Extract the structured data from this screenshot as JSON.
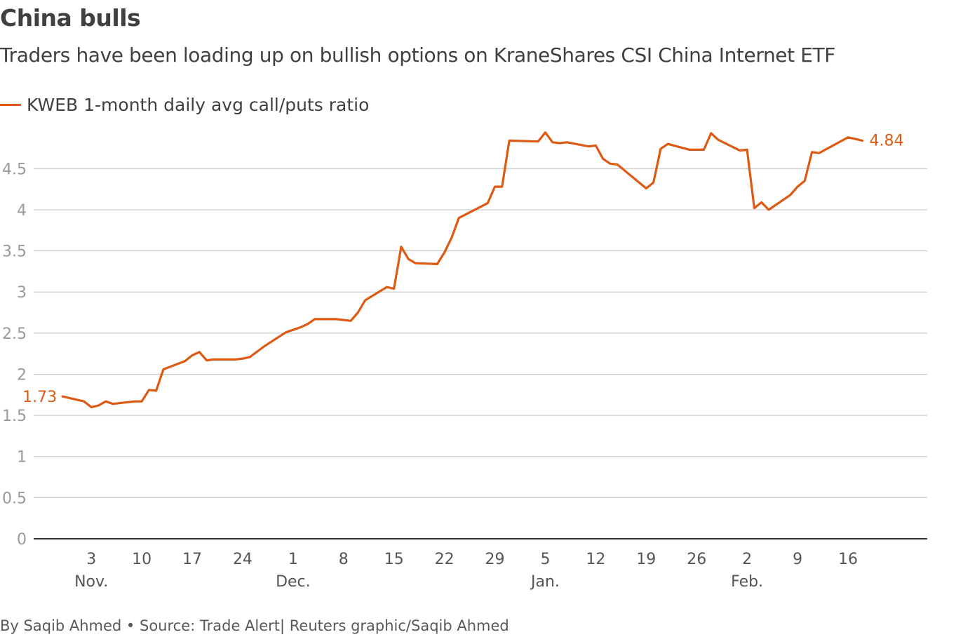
{
  "chart_data": {
    "type": "line",
    "title": "China bulls",
    "subtitle": "Traders have been loading up on bullish options on KraneShares CSI China Internet ETF",
    "series": [
      {
        "name": "KWEB 1-month daily avg call/puts ratio",
        "color": "#dc5a14",
        "start_label": "1.73",
        "end_label": "4.84",
        "x": [
          "2020-10-30",
          "2020-11-02",
          "2020-11-03",
          "2020-11-04",
          "2020-11-05",
          "2020-11-06",
          "2020-11-09",
          "2020-11-10",
          "2020-11-11",
          "2020-11-12",
          "2020-11-13",
          "2020-11-16",
          "2020-11-17",
          "2020-11-18",
          "2020-11-19",
          "2020-11-20",
          "2020-11-23",
          "2020-11-24",
          "2020-11-25",
          "2020-11-27",
          "2020-11-30",
          "2020-12-01",
          "2020-12-02",
          "2020-12-03",
          "2020-12-04",
          "2020-12-07",
          "2020-12-08",
          "2020-12-09",
          "2020-12-10",
          "2020-12-11",
          "2020-12-14",
          "2020-12-15",
          "2020-12-16",
          "2020-12-17",
          "2020-12-18",
          "2020-12-21",
          "2020-12-22",
          "2020-12-23",
          "2020-12-24",
          "2020-12-28",
          "2020-12-29",
          "2020-12-30",
          "2020-12-31",
          "2021-01-04",
          "2021-01-05",
          "2021-01-06",
          "2021-01-07",
          "2021-01-08",
          "2021-01-11",
          "2021-01-12",
          "2021-01-13",
          "2021-01-14",
          "2021-01-15",
          "2021-01-19",
          "2021-01-20",
          "2021-01-21",
          "2021-01-22",
          "2021-01-25",
          "2021-01-26",
          "2021-01-27",
          "2021-01-28",
          "2021-01-29",
          "2021-02-01",
          "2021-02-02",
          "2021-02-03",
          "2021-02-04",
          "2021-02-05",
          "2021-02-08",
          "2021-02-09",
          "2021-02-10",
          "2021-02-11",
          "2021-02-12",
          "2021-02-16",
          "2021-02-17",
          "2021-02-18"
        ],
        "values": [
          1.73,
          1.67,
          1.6,
          1.62,
          1.67,
          1.64,
          1.67,
          1.67,
          1.81,
          1.8,
          2.06,
          2.16,
          2.23,
          2.27,
          2.17,
          2.18,
          2.18,
          2.19,
          2.21,
          2.34,
          2.51,
          2.54,
          2.57,
          2.61,
          2.67,
          2.67,
          2.66,
          2.65,
          2.75,
          2.9,
          3.06,
          3.04,
          3.55,
          3.4,
          3.35,
          3.34,
          3.48,
          3.66,
          3.9,
          4.08,
          4.28,
          4.28,
          4.84,
          4.83,
          4.94,
          4.82,
          4.81,
          4.82,
          4.77,
          4.78,
          4.62,
          4.56,
          4.55,
          4.26,
          4.33,
          4.74,
          4.8,
          4.73,
          4.73,
          4.73,
          4.93,
          4.85,
          4.72,
          4.73,
          4.02,
          4.09,
          4.0,
          4.18,
          4.28,
          4.35,
          4.7,
          4.69,
          4.88,
          4.86,
          4.84
        ]
      }
    ],
    "x_ticks": [
      {
        "date": "2020-11-03",
        "label": "3"
      },
      {
        "date": "2020-11-10",
        "label": "10"
      },
      {
        "date": "2020-11-17",
        "label": "17"
      },
      {
        "date": "2020-11-24",
        "label": "24"
      },
      {
        "date": "2020-12-01",
        "label": "1"
      },
      {
        "date": "2020-12-08",
        "label": "8"
      },
      {
        "date": "2020-12-15",
        "label": "15"
      },
      {
        "date": "2020-12-22",
        "label": "22"
      },
      {
        "date": "2020-12-29",
        "label": "29"
      },
      {
        "date": "2021-01-05",
        "label": "5"
      },
      {
        "date": "2021-01-12",
        "label": "12"
      },
      {
        "date": "2021-01-19",
        "label": "19"
      },
      {
        "date": "2021-01-26",
        "label": "26"
      },
      {
        "date": "2021-02-02",
        "label": "2"
      },
      {
        "date": "2021-02-09",
        "label": "9"
      },
      {
        "date": "2021-02-16",
        "label": "16"
      }
    ],
    "month_labels": [
      {
        "date": "2020-11-03",
        "label": "Nov."
      },
      {
        "date": "2020-12-01",
        "label": "Dec."
      },
      {
        "date": "2021-01-05",
        "label": "Jan."
      },
      {
        "date": "2021-02-02",
        "label": "Feb."
      }
    ],
    "xlim": [
      "2020-10-26",
      "2021-02-27"
    ],
    "y_ticks": [
      {
        "value": 0,
        "label": "0"
      },
      {
        "value": 0.5,
        "label": "0.5"
      },
      {
        "value": 1,
        "label": "1"
      },
      {
        "value": 1.5,
        "label": "1.5"
      },
      {
        "value": 2,
        "label": "2"
      },
      {
        "value": 2.5,
        "label": "2.5"
      },
      {
        "value": 3,
        "label": "3"
      },
      {
        "value": 3.5,
        "label": "3.5"
      },
      {
        "value": 4,
        "label": "4"
      },
      {
        "value": 4.5,
        "label": "4.5"
      }
    ],
    "ylim": [
      0,
      5.1
    ],
    "grid": true,
    "legend_position": "top-left",
    "xlabel": "",
    "ylabel": ""
  },
  "footer": "By Saqib Ahmed • Source: Trade Alert| Reuters graphic/Saqib Ahmed"
}
